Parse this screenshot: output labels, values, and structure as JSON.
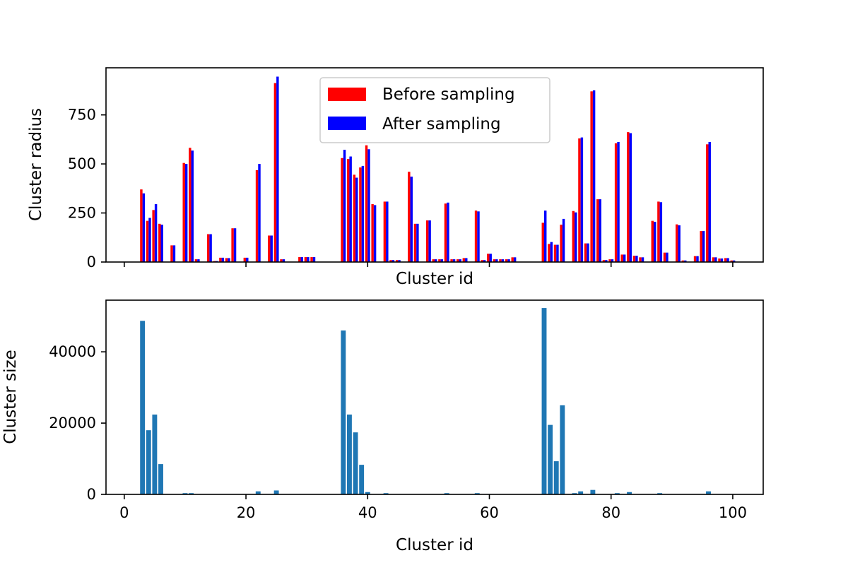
{
  "colors": {
    "before": "#ff0000",
    "after": "#0000ff",
    "size": "#1f77b4"
  },
  "chart_data": [
    {
      "type": "bar",
      "xlabel": "Cluster id",
      "ylabel": "Cluster radius",
      "xlim": [
        -3,
        105
      ],
      "ylim": [
        0,
        990
      ],
      "xticks": [
        0,
        20,
        40,
        60,
        80,
        100
      ],
      "show_xtick_labels": false,
      "yticks": [
        0,
        250,
        500,
        750
      ],
      "grid": false,
      "legend_position": "upper-center",
      "series": [
        {
          "name": "Before sampling",
          "color_key": "before",
          "points": [
            [
              3,
              370
            ],
            [
              4,
              210
            ],
            [
              5,
              265
            ],
            [
              6,
              195
            ],
            [
              8,
              85
            ],
            [
              10,
              505
            ],
            [
              11,
              582
            ],
            [
              12,
              14
            ],
            [
              14,
              142
            ],
            [
              15,
              5
            ],
            [
              16,
              22
            ],
            [
              17,
              20
            ],
            [
              18,
              172
            ],
            [
              20,
              22
            ],
            [
              22,
              468
            ],
            [
              24,
              135
            ],
            [
              25,
              912
            ],
            [
              26,
              14
            ],
            [
              29,
              25
            ],
            [
              30,
              25
            ],
            [
              31,
              25
            ],
            [
              36,
              530
            ],
            [
              37,
              525
            ],
            [
              38,
              445
            ],
            [
              39,
              482
            ],
            [
              40,
              595
            ],
            [
              41,
              295
            ],
            [
              43,
              308
            ],
            [
              44,
              10
            ],
            [
              45,
              10
            ],
            [
              47,
              460
            ],
            [
              48,
              195
            ],
            [
              50,
              212
            ],
            [
              51,
              14
            ],
            [
              52,
              14
            ],
            [
              53,
              298
            ],
            [
              54,
              14
            ],
            [
              55,
              14
            ],
            [
              56,
              20
            ],
            [
              58,
              262
            ],
            [
              59,
              10
            ],
            [
              60,
              42
            ],
            [
              61,
              14
            ],
            [
              62,
              14
            ],
            [
              63,
              14
            ],
            [
              64,
              24
            ],
            [
              69,
              200
            ],
            [
              70,
              92
            ],
            [
              71,
              88
            ],
            [
              72,
              190
            ],
            [
              74,
              260
            ],
            [
              75,
              630
            ],
            [
              76,
              95
            ],
            [
              77,
              870
            ],
            [
              78,
              320
            ],
            [
              79,
              10
            ],
            [
              80,
              14
            ],
            [
              81,
              605
            ],
            [
              82,
              38
            ],
            [
              83,
              662
            ],
            [
              84,
              32
            ],
            [
              85,
              24
            ],
            [
              87,
              210
            ],
            [
              88,
              308
            ],
            [
              89,
              48
            ],
            [
              91,
              192
            ],
            [
              92,
              8
            ],
            [
              94,
              30
            ],
            [
              95,
              158
            ],
            [
              96,
              600
            ],
            [
              97,
              24
            ],
            [
              98,
              18
            ],
            [
              99,
              20
            ],
            [
              100,
              8
            ]
          ]
        },
        {
          "name": "After sampling",
          "color_key": "after",
          "points": [
            [
              3,
              350
            ],
            [
              4,
              225
            ],
            [
              5,
              295
            ],
            [
              6,
              190
            ],
            [
              8,
              85
            ],
            [
              10,
              500
            ],
            [
              11,
              568
            ],
            [
              12,
              14
            ],
            [
              14,
              142
            ],
            [
              15,
              5
            ],
            [
              16,
              22
            ],
            [
              17,
              20
            ],
            [
              18,
              172
            ],
            [
              20,
              22
            ],
            [
              22,
              500
            ],
            [
              24,
              135
            ],
            [
              25,
              945
            ],
            [
              26,
              14
            ],
            [
              29,
              25
            ],
            [
              30,
              25
            ],
            [
              31,
              25
            ],
            [
              36,
              572
            ],
            [
              37,
              538
            ],
            [
              38,
              430
            ],
            [
              39,
              490
            ],
            [
              40,
              575
            ],
            [
              41,
              290
            ],
            [
              43,
              308
            ],
            [
              44,
              10
            ],
            [
              45,
              10
            ],
            [
              47,
              435
            ],
            [
              48,
              195
            ],
            [
              50,
              212
            ],
            [
              51,
              14
            ],
            [
              52,
              14
            ],
            [
              53,
              303
            ],
            [
              54,
              14
            ],
            [
              55,
              14
            ],
            [
              56,
              20
            ],
            [
              58,
              258
            ],
            [
              59,
              10
            ],
            [
              60,
              42
            ],
            [
              61,
              14
            ],
            [
              62,
              14
            ],
            [
              63,
              14
            ],
            [
              64,
              24
            ],
            [
              69,
              262
            ],
            [
              70,
              102
            ],
            [
              71,
              88
            ],
            [
              72,
              220
            ],
            [
              74,
              253
            ],
            [
              75,
              635
            ],
            [
              76,
              95
            ],
            [
              77,
              875
            ],
            [
              78,
              320
            ],
            [
              79,
              10
            ],
            [
              80,
              14
            ],
            [
              81,
              612
            ],
            [
              82,
              38
            ],
            [
              83,
              657
            ],
            [
              84,
              32
            ],
            [
              85,
              24
            ],
            [
              87,
              205
            ],
            [
              88,
              305
            ],
            [
              89,
              48
            ],
            [
              91,
              187
            ],
            [
              92,
              8
            ],
            [
              94,
              30
            ],
            [
              95,
              158
            ],
            [
              96,
              612
            ],
            [
              97,
              24
            ],
            [
              98,
              18
            ],
            [
              99,
              20
            ],
            [
              100,
              8
            ]
          ]
        }
      ]
    },
    {
      "type": "bar",
      "xlabel": "Cluster id",
      "ylabel": "Cluster size",
      "xlim": [
        -3,
        105
      ],
      "ylim": [
        0,
        54500
      ],
      "xticks": [
        0,
        20,
        40,
        60,
        80,
        100
      ],
      "show_xtick_labels": true,
      "yticks": [
        0,
        20000,
        40000
      ],
      "grid": false,
      "series": [
        {
          "color_key": "size",
          "points": [
            [
              3,
              48700
            ],
            [
              4,
              18000
            ],
            [
              5,
              22400
            ],
            [
              6,
              8500
            ],
            [
              10,
              350
            ],
            [
              11,
              350
            ],
            [
              22,
              850
            ],
            [
              25,
              1100
            ],
            [
              36,
              46000
            ],
            [
              37,
              22400
            ],
            [
              38,
              17400
            ],
            [
              39,
              8300
            ],
            [
              40,
              650
            ],
            [
              43,
              350
            ],
            [
              53,
              350
            ],
            [
              58,
              350
            ],
            [
              69,
              52300
            ],
            [
              70,
              19500
            ],
            [
              71,
              9300
            ],
            [
              72,
              25000
            ],
            [
              74,
              350
            ],
            [
              75,
              850
            ],
            [
              77,
              1250
            ],
            [
              81,
              350
            ],
            [
              83,
              650
            ],
            [
              88,
              350
            ],
            [
              96,
              850
            ]
          ]
        }
      ]
    }
  ]
}
